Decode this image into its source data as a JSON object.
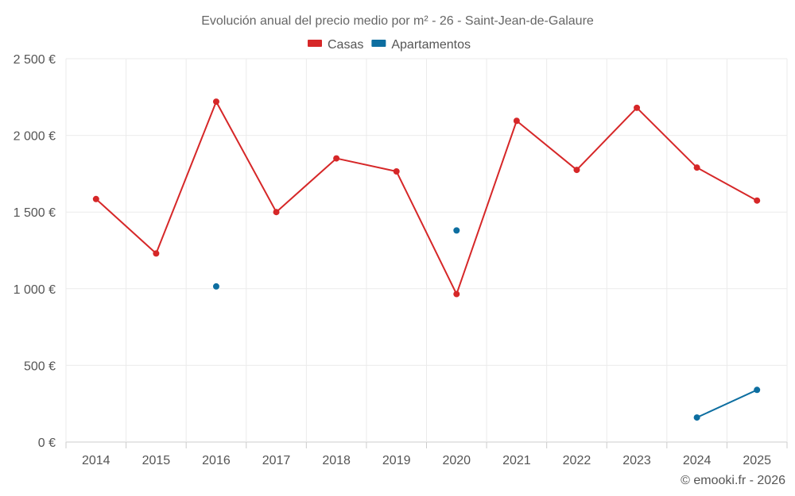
{
  "chart_data": {
    "type": "line",
    "title": "Evolución anual del precio medio por m² - 26 - Saint-Jean-de-Galaure",
    "categories": [
      "2014",
      "2015",
      "2016",
      "2017",
      "2018",
      "2019",
      "2020",
      "2021",
      "2022",
      "2023",
      "2024",
      "2025"
    ],
    "ylim": [
      0,
      2500
    ],
    "yticks": [
      0,
      500,
      1000,
      1500,
      2000,
      2500
    ],
    "ytick_labels": [
      "0 €",
      "500 €",
      "1 000 €",
      "1 500 €",
      "2 000 €",
      "2 500 €"
    ],
    "grid": true,
    "legend_position": "top-center",
    "series": [
      {
        "name": "Casas",
        "color": "#d62728",
        "values": [
          1585,
          1230,
          2220,
          1500,
          1850,
          1765,
          965,
          2095,
          1775,
          2180,
          1790,
          1575
        ]
      },
      {
        "name": "Apartamentos",
        "color": "#0d6ea0",
        "values": [
          null,
          null,
          1015,
          null,
          null,
          null,
          1380,
          null,
          null,
          null,
          160,
          340
        ]
      }
    ]
  },
  "footer": {
    "credit": "© emooki.fr - 2026"
  }
}
